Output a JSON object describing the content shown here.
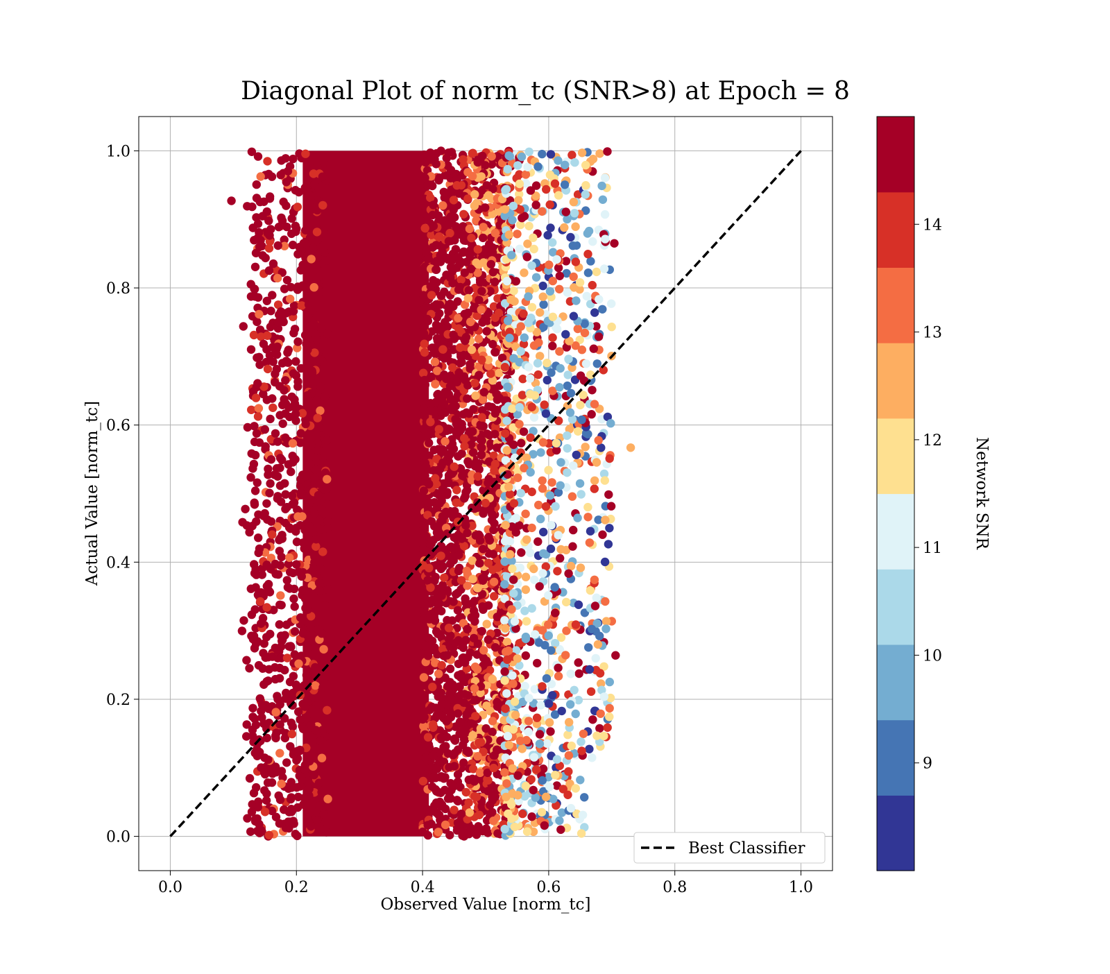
{
  "chart_data": {
    "type": "scatter",
    "title": "Diagonal Plot of norm_tc (SNR>8) at Epoch = 8",
    "xlabel": "Observed Value [norm_tc]",
    "ylabel": "Actual Value [norm_tc]",
    "xlim": [
      -0.05,
      1.05
    ],
    "ylim": [
      -0.05,
      1.05
    ],
    "xticks": [
      "0.0",
      "0.2",
      "0.4",
      "0.6",
      "0.8",
      "1.0"
    ],
    "yticks": [
      "0.0",
      "0.2",
      "0.4",
      "0.6",
      "0.8",
      "1.0"
    ],
    "grid": true,
    "legend": {
      "placement": "lower-right",
      "entries": [
        "Best Classifier"
      ]
    },
    "reference_line": {
      "name": "Best Classifier",
      "x": [
        0,
        1
      ],
      "y": [
        0,
        1
      ],
      "style": "dashed",
      "color": "#000000"
    },
    "colorbar": {
      "label": "Network SNR",
      "range": [
        8,
        15
      ],
      "ticks": [
        "9",
        "10",
        "11",
        "12",
        "13",
        "14"
      ],
      "colors": [
        "#313695",
        "#4575b4",
        "#74add1",
        "#abd9e9",
        "#e0f3f8",
        "#fee090",
        "#fdae61",
        "#f46d43",
        "#d73027",
        "#a50026"
      ]
    },
    "point_distribution": {
      "dense_core": {
        "x_range": [
          0.17,
          0.53
        ],
        "y_range": [
          0.0,
          1.0
        ],
        "dominant_snr": "14+"
      },
      "sparse_tail": {
        "x_range": [
          0.53,
          0.73
        ],
        "y_range": [
          0.0,
          1.0
        ],
        "snr_mix": "8-14"
      },
      "notable_points": [
        {
          "x": 0.097,
          "y": 0.927
        },
        {
          "x": 0.73,
          "y": 0.567
        },
        {
          "x": 0.704,
          "y": 0.865
        },
        {
          "x": 0.706,
          "y": 0.264
        },
        {
          "x": 0.693,
          "y": 0.999
        }
      ]
    }
  }
}
